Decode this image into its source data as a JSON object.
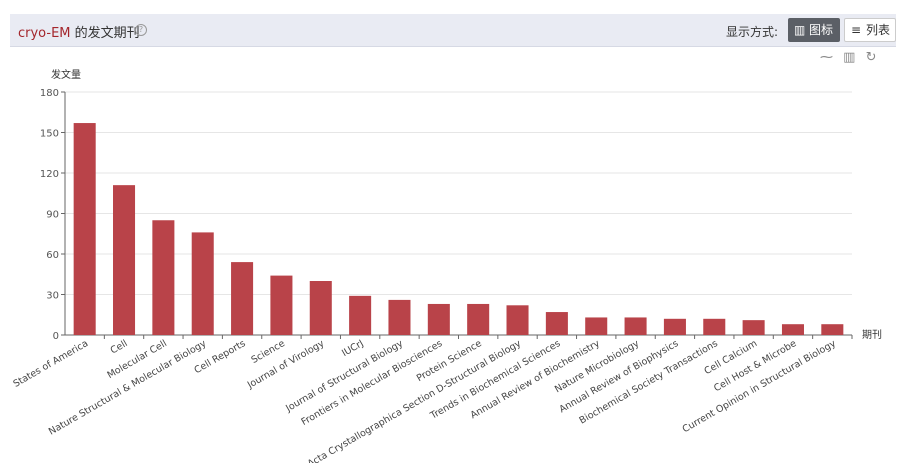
{
  "header": {
    "title_keyword": "cryo-EM",
    "title_rest": " 的发文期刊",
    "help_icon": "question-circle-icon",
    "mode_label": "显示方式:",
    "chart_button_label": "图标",
    "list_button_label": "列表",
    "chart_button_icon": "bar-chart-icon",
    "list_button_icon": "list-icon"
  },
  "toolbox": {
    "icons": [
      "line-chart-icon",
      "bar-chart-icon",
      "refresh-icon"
    ]
  },
  "colors": {
    "bar": "#b94349",
    "title_accent": "#a4262c",
    "button_active_bg": "#5b5f66"
  },
  "chart_data": {
    "type": "bar",
    "ylabel": "发文量",
    "xlabel": "期刊",
    "ylim": [
      0,
      180
    ],
    "yticks": [
      0,
      30,
      60,
      90,
      120,
      150,
      180
    ],
    "grid": true,
    "categories": [
      "States of America",
      "Cell",
      "Molecular Cell",
      "Nature Structural & Molecular Biology",
      "Cell Reports",
      "Science",
      "Journal of Virology",
      "IUCrJ",
      "Journal of Structural Biology",
      "Frontiers in Molecular Biosciences",
      "Protein Science",
      "Acta Crystallographica Section D-Structural Biology",
      "Trends in Biochemical Sciences",
      "Annual Review of Biochemistry",
      "Nature Microbiology",
      "Annual Review of Biophysics",
      "Biochemical Society Transactions",
      "Cell Calcium",
      "Cell Host & Microbe",
      "Current Opinion in Structural Biology"
    ],
    "values": [
      157,
      111,
      85,
      76,
      54,
      44,
      40,
      29,
      26,
      23,
      23,
      22,
      17,
      13,
      13,
      12,
      12,
      11,
      8,
      8
    ]
  }
}
